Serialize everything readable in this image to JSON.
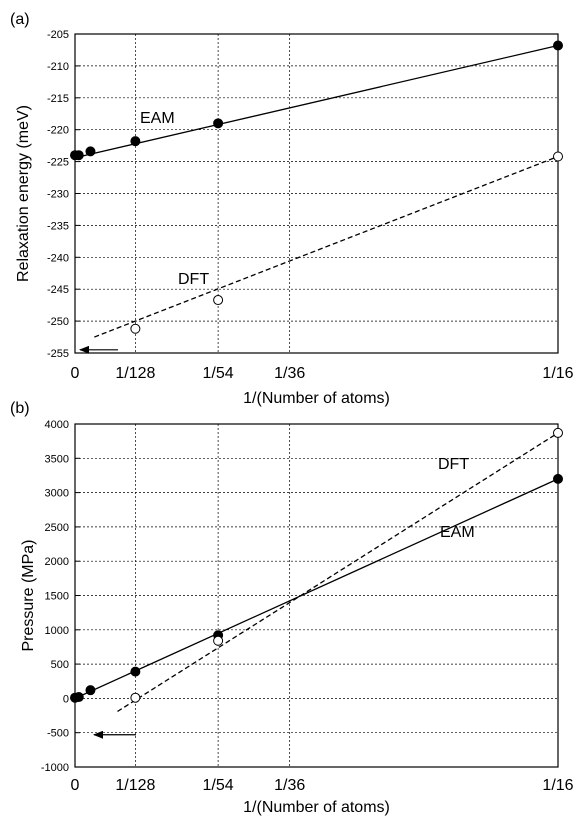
{
  "chart_data": [
    {
      "panel_label": "(a)",
      "type": "line",
      "ylabel": "Relaxation energy (meV)",
      "xlabel": "1/(Number of atoms)",
      "xticks": [
        {
          "value": 0,
          "label": "0"
        },
        {
          "value": 0.0078125,
          "label": "1/128"
        },
        {
          "value": 0.018518519,
          "label": "1/54"
        },
        {
          "value": 0.027777778,
          "label": "1/36"
        },
        {
          "value": 0.0625,
          "label": "1/16"
        }
      ],
      "xlim": [
        0,
        0.0625
      ],
      "ylim": [
        -255,
        -205
      ],
      "yticks": [
        "-205",
        "-210",
        "-215",
        "-220",
        "-225",
        "-230",
        "-235",
        "-240",
        "-245",
        "-250",
        "-255"
      ],
      "grid": true,
      "series": [
        {
          "name": "EAM",
          "marker": "filled-circle",
          "line": "solid",
          "points": [
            [
              0.0,
              -224.0
            ],
            [
              0.000488,
              -224.0
            ],
            [
              0.002,
              -223.4
            ],
            [
              0.0078125,
              -221.8
            ],
            [
              0.018518519,
              -219.0
            ],
            [
              0.0625,
              -206.8
            ]
          ],
          "fit": [
            [
              0.0,
              -224.4
            ],
            [
              0.0625,
              -206.8
            ]
          ]
        },
        {
          "name": "DFT",
          "marker": "open-circle",
          "line": "dashed",
          "points": [
            [
              0.0078125,
              -251.2
            ],
            [
              0.018518519,
              -246.7
            ],
            [
              0.0625,
              -224.2
            ]
          ],
          "fit": [
            [
              0.0025,
              -252.5
            ],
            [
              0.0625,
              -224.2
            ]
          ]
        }
      ],
      "arrow_to_axis_value": -254.5
    },
    {
      "panel_label": "(b)",
      "type": "line",
      "ylabel": "Pressure (MPa)",
      "xlabel": "1/(Number of atoms)",
      "xticks": [
        {
          "value": 0,
          "label": "0"
        },
        {
          "value": 0.0078125,
          "label": "1/128"
        },
        {
          "value": 0.018518519,
          "label": "1/54"
        },
        {
          "value": 0.027777778,
          "label": "1/36"
        },
        {
          "value": 0.0625,
          "label": "1/16"
        }
      ],
      "xlim": [
        0,
        0.0625
      ],
      "ylim": [
        -1000,
        4000
      ],
      "yticks": [
        "4000",
        "3500",
        "3000",
        "2500",
        "2000",
        "1500",
        "1000",
        "500",
        "0",
        "-500",
        "-1000"
      ],
      "grid": true,
      "series": [
        {
          "name": "EAM",
          "marker": "filled-circle",
          "line": "solid",
          "points": [
            [
              0.0,
              10
            ],
            [
              0.000488,
              20
            ],
            [
              0.002,
              120
            ],
            [
              0.0078125,
              390
            ],
            [
              0.018518519,
              920
            ],
            [
              0.0625,
              3200
            ]
          ],
          "fit": [
            [
              0.0,
              0
            ],
            [
              0.0625,
              3200
            ]
          ]
        },
        {
          "name": "DFT",
          "marker": "open-circle",
          "line": "dashed",
          "points": [
            [
              0.0078125,
              10
            ],
            [
              0.018518519,
              840
            ],
            [
              0.0625,
              3870
            ]
          ],
          "fit": [
            [
              0.0055,
              -190
            ],
            [
              0.0625,
              3870
            ]
          ]
        }
      ],
      "arrow_to_axis_value": -530
    }
  ]
}
